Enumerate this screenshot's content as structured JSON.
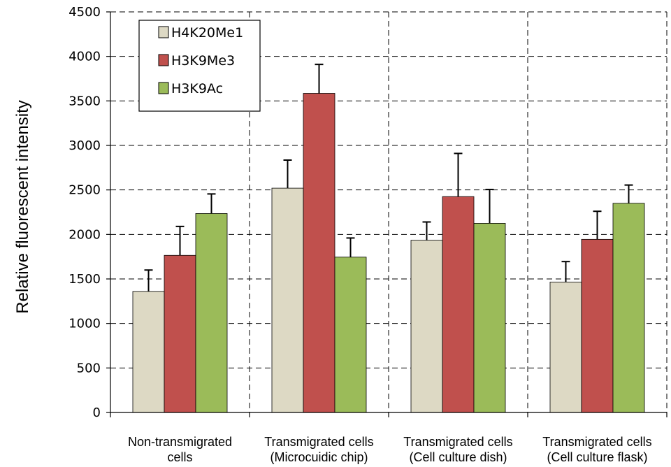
{
  "chart_data": {
    "type": "bar",
    "title": "",
    "xlabel": "",
    "ylabel": "Relative fluorescent intensity",
    "ylim": [
      0,
      4500
    ],
    "yticks": [
      0,
      500,
      1000,
      1500,
      2000,
      2500,
      3000,
      3500,
      4000,
      4500
    ],
    "grid": true,
    "legend_position": "top-left",
    "categories": [
      [
        "Non-transmigrated",
        "cells"
      ],
      [
        "Transmigrated cells",
        "(Microcuidic chip)"
      ],
      [
        "Transmigrated cells",
        "(Cell culture dish)"
      ],
      [
        "Transmigrated cells",
        "(Cell culture flask)"
      ]
    ],
    "series": [
      {
        "name": "H4K20Me1",
        "color": "#ddd9c4",
        "values": [
          1360,
          2520,
          1935,
          1465
        ],
        "errors": [
          240,
          315,
          205,
          230
        ]
      },
      {
        "name": "H3K9Me3",
        "color": "#c0504d",
        "values": [
          1765,
          3585,
          2425,
          1945
        ],
        "errors": [
          325,
          325,
          485,
          315
        ]
      },
      {
        "name": "H3K9Ac",
        "color": "#9bbb59",
        "values": [
          2235,
          1745,
          2125,
          2350
        ],
        "errors": [
          220,
          215,
          380,
          205
        ]
      }
    ]
  }
}
